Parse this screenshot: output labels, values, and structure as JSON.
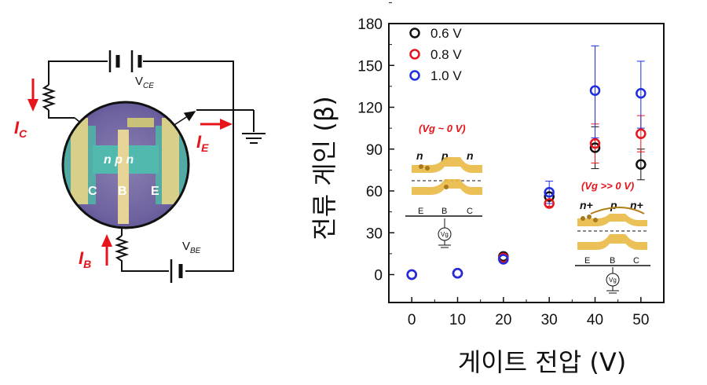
{
  "circuit": {
    "vce_label": "V",
    "vce_sub": "CE",
    "vbe_label": "V",
    "vbe_sub": "BE",
    "ic_label": "I",
    "ic_sub": "C",
    "ie_label": "I",
    "ie_sub": "E",
    "ib_label": "I",
    "ib_sub": "B",
    "device_text": "n p n",
    "terminal_c": "C",
    "terminal_b": "B",
    "terminal_e": "E"
  },
  "inset1": {
    "title": "(Vg ~ 0 V)",
    "region_left": "n",
    "region_mid": "p",
    "region_right": "n",
    "term_e": "E",
    "term_b": "B",
    "term_c": "C",
    "gate": "Vg"
  },
  "inset2": {
    "title": "(Vg >> 0 V)",
    "region_left": "n+",
    "region_mid": "p",
    "region_right": "n+",
    "term_e": "E",
    "term_b": "B",
    "term_c": "C",
    "gate": "Vg"
  },
  "colors": {
    "black_series": "#111111",
    "red_series": "#e8141b",
    "blue_series": "#1f2de0",
    "band_gold": "#d9a63a",
    "arrow_red": "#e8141b"
  },
  "chart_data": {
    "type": "scatter",
    "xlabel": "게이트 전압 (V)",
    "ylabel": "전류 게인 (β)",
    "xlim": [
      -5,
      55
    ],
    "ylim": [
      -20,
      180
    ],
    "xticks": [
      0,
      10,
      20,
      30,
      40,
      50
    ],
    "yticks": [
      0,
      30,
      60,
      90,
      120,
      150,
      180
    ],
    "legend_position": "top-left",
    "series": [
      {
        "name": "0.6 V",
        "color": "#111111",
        "points": [
          {
            "x": 0,
            "y": 0
          },
          {
            "x": 10,
            "y": 1
          },
          {
            "x": 20,
            "y": 13
          },
          {
            "x": 30,
            "y": 56
          },
          {
            "x": 40,
            "y": 91,
            "err_low": 76,
            "err_high": 106
          },
          {
            "x": 50,
            "y": 79,
            "err_low": 68,
            "err_high": 90
          }
        ]
      },
      {
        "name": "0.8 V",
        "color": "#e8141b",
        "points": [
          {
            "x": 0,
            "y": 0
          },
          {
            "x": 10,
            "y": 1
          },
          {
            "x": 20,
            "y": 12
          },
          {
            "x": 30,
            "y": 51,
            "err_low": 49,
            "err_high": 54
          },
          {
            "x": 40,
            "y": 94,
            "err_low": 80,
            "err_high": 108
          },
          {
            "x": 50,
            "y": 101,
            "err_low": 88,
            "err_high": 114
          }
        ]
      },
      {
        "name": "1.0 V",
        "color": "#1f2de0",
        "points": [
          {
            "x": 0,
            "y": 0
          },
          {
            "x": 10,
            "y": 1
          },
          {
            "x": 20,
            "y": 11
          },
          {
            "x": 30,
            "y": 59,
            "err_low": 51,
            "err_high": 67
          },
          {
            "x": 40,
            "y": 132,
            "err_low": 98,
            "err_high": 164
          },
          {
            "x": 50,
            "y": 130,
            "err_low": 105,
            "err_high": 153
          }
        ]
      }
    ]
  }
}
